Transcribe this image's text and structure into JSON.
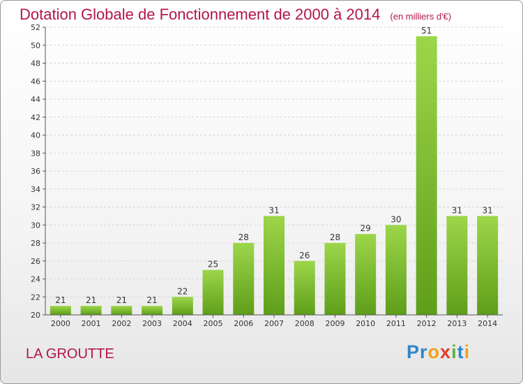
{
  "chart_data": {
    "type": "bar",
    "title": "Dotation Globale de Fonctionnement de 2000 à 2014",
    "unit": "(en milliers d'€)",
    "categories": [
      "2000",
      "2001",
      "2002",
      "2003",
      "2004",
      "2005",
      "2006",
      "2007",
      "2008",
      "2009",
      "2010",
      "2011",
      "2012",
      "2013",
      "2014"
    ],
    "values": [
      21,
      21,
      21,
      21,
      22,
      25,
      28,
      31,
      26,
      28,
      29,
      30,
      51,
      31,
      31
    ],
    "ylim": [
      20,
      52
    ],
    "yticks": [
      20,
      22,
      24,
      26,
      28,
      30,
      32,
      34,
      36,
      38,
      40,
      42,
      44,
      46,
      48,
      50,
      52
    ],
    "grid": true,
    "bar_color": "#7fbe2f"
  },
  "footer": {
    "commune": "LA GROUTTE",
    "logo": "Proxiti"
  }
}
